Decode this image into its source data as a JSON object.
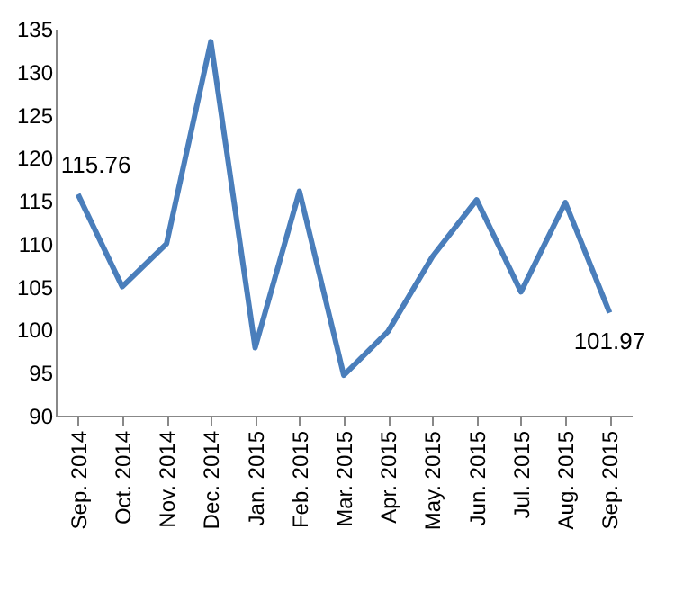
{
  "chart_data": {
    "type": "line",
    "categories": [
      "Sep. 2014",
      "Oct. 2014",
      "Nov. 2014",
      "Dec. 2014",
      "Jan. 2015",
      "Feb. 2015",
      "Mar. 2015",
      "Apr. 2015",
      "May. 2015",
      "Jun. 2015",
      "Jul. 2015",
      "Aug. 2015",
      "Sep. 2015"
    ],
    "series": [
      {
        "color": "#4a7ebb",
        "values": [
          115.76,
          105.0,
          110.0,
          133.5,
          97.9,
          116.1,
          94.7,
          99.8,
          108.5,
          115.1,
          104.4,
          114.8,
          101.97
        ],
        "value_labels": [
          "115.76",
          null,
          null,
          null,
          null,
          null,
          null,
          null,
          null,
          null,
          null,
          null,
          "101.97"
        ]
      }
    ],
    "ylim": [
      90,
      135
    ],
    "yticks": [
      90,
      95,
      100,
      105,
      110,
      115,
      120,
      125,
      130,
      135
    ],
    "grid": false,
    "marker": "none",
    "line_style": "solid"
  }
}
